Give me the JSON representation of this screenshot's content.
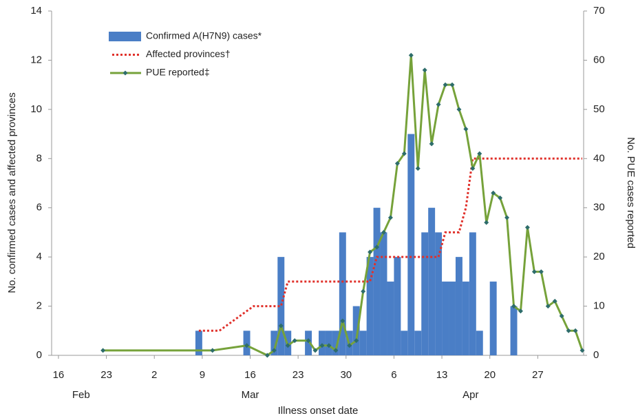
{
  "chart_data": {
    "type": "combo",
    "x_label": "Illness onset date",
    "y_label": "No. confirmed cases and affected provinces",
    "y2_label": "No. PUE cases reported",
    "xlim": [
      -1,
      76.7
    ],
    "xticks": [
      {
        "value": 0,
        "label": "16"
      },
      {
        "value": 7,
        "label": "23"
      },
      {
        "value": 14,
        "label": "2"
      },
      {
        "value": 21,
        "label": "9"
      },
      {
        "value": 28,
        "label": "16"
      },
      {
        "value": 35,
        "label": "23"
      },
      {
        "value": 42,
        "label": "30"
      },
      {
        "value": 49,
        "label": "6"
      },
      {
        "value": 56,
        "label": "13"
      },
      {
        "value": 63,
        "label": "20"
      },
      {
        "value": 70,
        "label": "27"
      }
    ],
    "months": [
      {
        "value": 3.3,
        "label": "Feb"
      },
      {
        "value": 28,
        "label": "Mar"
      },
      {
        "value": 60.2,
        "label": "Apr"
      }
    ],
    "ylim": [
      0,
      14
    ],
    "yticks": [
      0,
      2,
      4,
      6,
      8,
      10,
      12,
      14
    ],
    "y2lim": [
      0,
      70
    ],
    "y2ticks": [
      0,
      10,
      20,
      30,
      40,
      50,
      60,
      70
    ],
    "series": [
      {
        "name": "Confirmed A(H7N9) cases*",
        "type": "bar",
        "color": "#4a7ec6",
        "x": [
          20,
          27,
          31,
          32,
          33,
          36,
          38,
          39,
          40,
          41,
          42,
          43,
          44,
          45,
          46,
          47,
          48,
          49,
          50,
          51,
          52,
          53,
          54,
          55,
          56,
          57,
          58,
          59,
          60,
          61,
          63,
          66
        ],
        "values": [
          1,
          1,
          1,
          4,
          1,
          1,
          1,
          1,
          1,
          5,
          1,
          2,
          1,
          4,
          6,
          5,
          3,
          4,
          1,
          9,
          1,
          5,
          6,
          5,
          3,
          3,
          4,
          3,
          5,
          1,
          3,
          2
        ]
      },
      {
        "name": "Affected provinces†",
        "type": "step",
        "color": "#e0302a",
        "x": [
          20,
          23,
          28,
          32,
          33,
          45,
          46,
          55,
          56,
          58,
          59,
          60,
          76
        ],
        "values": [
          1,
          1,
          2,
          2,
          3,
          3,
          4,
          4,
          5,
          5,
          6,
          8,
          8
        ]
      },
      {
        "name": "PUE reported‡",
        "type": "line",
        "axis": "y2",
        "color": "#76a23a",
        "marker_color": "#2e6d6b",
        "x": [
          6,
          22,
          27,
          30,
          31,
          32,
          33,
          34,
          36,
          37,
          38,
          39,
          40,
          41,
          42,
          43,
          44,
          45,
          46,
          47,
          48,
          49,
          50,
          51,
          52,
          53,
          54,
          55,
          56,
          57,
          58,
          59,
          60,
          61,
          62,
          63,
          64,
          65,
          66,
          67,
          68,
          69,
          70,
          71,
          72,
          73,
          74,
          75,
          76
        ],
        "values": [
          1,
          1,
          2,
          0,
          1,
          6,
          2,
          3,
          3,
          1,
          2,
          2,
          1,
          7,
          2,
          3,
          13,
          21,
          22,
          25,
          28,
          39,
          41,
          61,
          38,
          58,
          43,
          51,
          55,
          55,
          50,
          46,
          38,
          41,
          27,
          33,
          32,
          28,
          10,
          9,
          26,
          17,
          17,
          10,
          11,
          8,
          5,
          5,
          1
        ]
      }
    ]
  }
}
